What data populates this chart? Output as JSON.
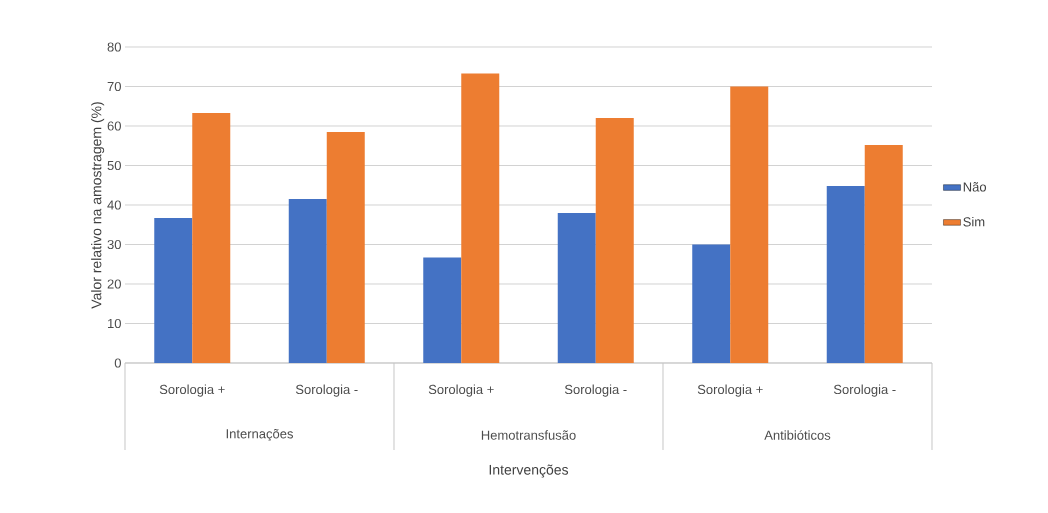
{
  "chart_data": {
    "type": "bar",
    "xlabel": "Intervenções",
    "ylabel": "Valor relativo na amostragem (%)",
    "categories": [
      "Sorologia +",
      "Sorologia -",
      "Sorologia +",
      "Sorologia -",
      "Sorologia +",
      "Sorologia -"
    ],
    "series": [
      {
        "name": "Não",
        "color": "#4472c4",
        "values": [
          36.7,
          41.5,
          26.7,
          38,
          30,
          44.8
        ]
      },
      {
        "name": "Sim",
        "color": "#ed7d31",
        "values": [
          63.3,
          58.5,
          73.3,
          62,
          70,
          55.2
        ]
      }
    ],
    "annotations": [
      "Internações",
      "Hemotransfusão",
      "Antibióticos"
    ],
    "ylim": [
      0,
      80
    ],
    "yticks": [
      0,
      10,
      20,
      30,
      40,
      50,
      60,
      70,
      80
    ],
    "grid": "y",
    "legend": "right"
  }
}
